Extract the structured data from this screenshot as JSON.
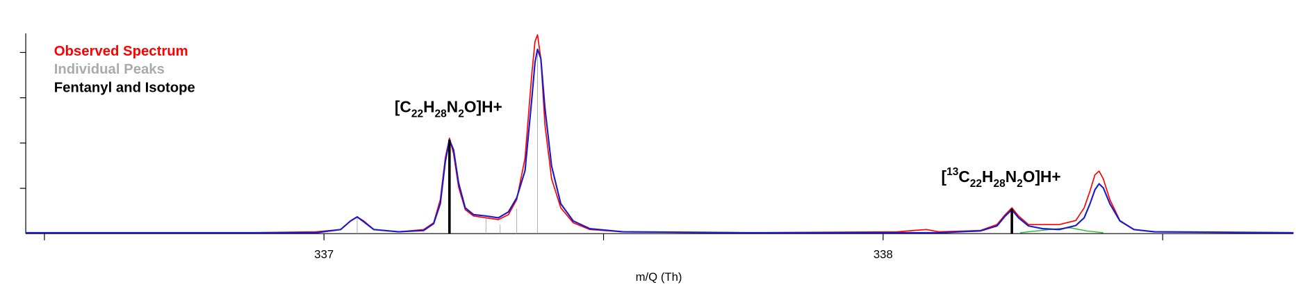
{
  "chart_data": {
    "type": "line",
    "x_label": "m/Q (Th)",
    "xlim": [
      336.4666,
      338.734
    ],
    "ylim": [
      0,
      4.42
    ],
    "xticks": [
      337,
      338
    ],
    "xtick_marks": [
      336.5,
      337,
      337.5,
      338,
      338.5
    ],
    "ytick_marks": [
      1,
      2,
      3,
      4
    ],
    "x": [
      336.4666,
      336.8663,
      336.9851,
      337.0297,
      337.0475,
      337.0594,
      337.0713,
      337.0892,
      337.1337,
      337.1783,
      337.1961,
      337.208,
      337.2169,
      337.2244,
      337.2318,
      337.2407,
      337.2526,
      337.2675,
      337.2897,
      337.312,
      337.3299,
      337.3447,
      337.3596,
      337.3715,
      337.3774,
      337.3819,
      337.3878,
      337.3952,
      337.4071,
      337.4235,
      337.4458,
      337.4755,
      337.5349,
      337.7578,
      338.0253,
      338.055,
      338.0773,
      338.0996,
      338.1738,
      338.2036,
      338.2184,
      338.2303,
      338.2422,
      338.26,
      338.2853,
      338.315,
      338.3447,
      338.3596,
      338.37,
      338.3789,
      338.3863,
      338.3938,
      338.4056,
      338.4235,
      338.4487,
      338.4859,
      338.734
    ],
    "series": [
      {
        "name": "Observed Spectrum",
        "color": "#ff0000",
        "values": [
          0.02,
          0.02,
          0.04,
          0.09,
          0.28,
          0.37,
          0.28,
          0.09,
          0.04,
          0.09,
          0.24,
          0.75,
          1.67,
          2.11,
          1.76,
          1.03,
          0.53,
          0.39,
          0.35,
          0.31,
          0.42,
          0.75,
          1.67,
          3.5,
          4.24,
          4.39,
          3.87,
          2.4,
          1.21,
          0.57,
          0.24,
          0.09,
          0.04,
          0.02,
          0.04,
          0.07,
          0.09,
          0.04,
          0.07,
          0.2,
          0.42,
          0.57,
          0.39,
          0.2,
          0.2,
          0.2,
          0.29,
          0.57,
          0.94,
          1.3,
          1.38,
          1.21,
          0.75,
          0.29,
          0.09,
          0.04,
          0.02
        ]
      },
      {
        "name": "Individual Peaks",
        "color": "#aaaaaa",
        "sticks": true,
        "x": [
          337.0594,
          337.2897,
          337.315,
          337.3447,
          337.3819
        ],
        "values": [
          0.37,
          0.35,
          0.2,
          0.55,
          4.07
        ]
      },
      {
        "name": "Fentanyl and Isotope",
        "color": "#000000",
        "sticks": true,
        "x": [
          337.2244,
          338.2303
        ],
        "values": [
          2.07,
          0.55
        ]
      }
    ],
    "fit": {
      "color": "#1a1acc",
      "values": [
        0.02,
        0.02,
        0.02,
        0.09,
        0.28,
        0.37,
        0.26,
        0.09,
        0.04,
        0.07,
        0.22,
        0.66,
        1.58,
        2.07,
        1.85,
        1.12,
        0.57,
        0.42,
        0.39,
        0.35,
        0.48,
        0.79,
        1.39,
        2.95,
        3.78,
        4.07,
        3.87,
        2.77,
        1.49,
        0.66,
        0.28,
        0.11,
        0.04,
        0.02,
        0.02,
        0.02,
        0.02,
        0.02,
        0.06,
        0.17,
        0.39,
        0.53,
        0.35,
        0.17,
        0.11,
        0.09,
        0.18,
        0.35,
        0.66,
        0.97,
        1.1,
        1.01,
        0.66,
        0.28,
        0.09,
        0.04,
        0.02
      ]
    },
    "components": {
      "color": "#22bb22",
      "x": [
        338.2452,
        338.2972,
        338.3343,
        338.3641,
        338.3938
      ],
      "values": [
        0.02,
        0.09,
        0.13,
        0.06,
        0.02
      ]
    },
    "annotations": [
      {
        "parts": [
          {
            "text": "[C"
          },
          {
            "text": "22",
            "shift": "sub"
          },
          {
            "text": "H"
          },
          {
            "text": "28",
            "shift": "sub"
          },
          {
            "text": "N"
          },
          {
            "text": "2",
            "shift": "sub"
          },
          {
            "text": "O]H+"
          }
        ]
      },
      {
        "parts": [
          {
            "text": "["
          },
          {
            "text": "13",
            "shift": "super"
          },
          {
            "text": "C"
          },
          {
            "text": "22",
            "shift": "sub"
          },
          {
            "text": "H"
          },
          {
            "text": "28",
            "shift": "sub"
          },
          {
            "text": "N"
          },
          {
            "text": "2",
            "shift": "sub"
          },
          {
            "text": "O]H+"
          }
        ]
      }
    ]
  }
}
